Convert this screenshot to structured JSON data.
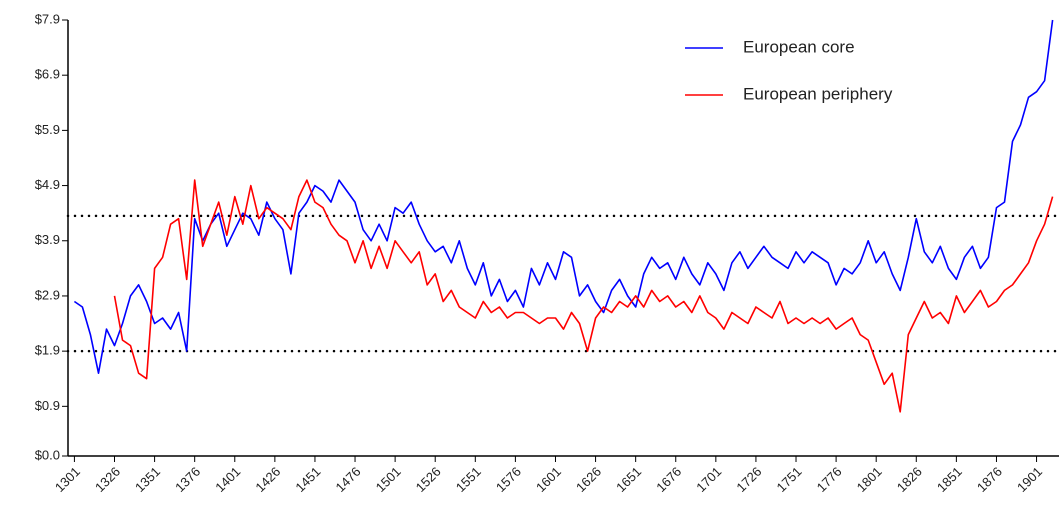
{
  "chart_data": {
    "type": "line",
    "x": [
      1301,
      1306,
      1311,
      1316,
      1321,
      1326,
      1331,
      1336,
      1341,
      1346,
      1351,
      1356,
      1361,
      1366,
      1371,
      1376,
      1381,
      1386,
      1391,
      1396,
      1401,
      1406,
      1411,
      1416,
      1421,
      1426,
      1431,
      1436,
      1441,
      1446,
      1451,
      1456,
      1461,
      1466,
      1471,
      1476,
      1481,
      1486,
      1491,
      1496,
      1501,
      1506,
      1511,
      1516,
      1521,
      1526,
      1531,
      1536,
      1541,
      1546,
      1551,
      1556,
      1561,
      1566,
      1571,
      1576,
      1581,
      1586,
      1591,
      1596,
      1601,
      1606,
      1611,
      1616,
      1621,
      1626,
      1631,
      1636,
      1641,
      1646,
      1651,
      1656,
      1661,
      1666,
      1671,
      1676,
      1681,
      1686,
      1691,
      1696,
      1701,
      1706,
      1711,
      1716,
      1721,
      1726,
      1731,
      1736,
      1741,
      1746,
      1751,
      1756,
      1761,
      1766,
      1771,
      1776,
      1781,
      1786,
      1791,
      1796,
      1801,
      1806,
      1811,
      1816,
      1821,
      1826,
      1831,
      1836,
      1841,
      1846,
      1851,
      1856,
      1861,
      1866,
      1871,
      1876,
      1881,
      1886,
      1891,
      1896,
      1901,
      1906,
      1911
    ],
    "series": [
      {
        "name": "European core",
        "color": "#0000ff",
        "values": [
          2.8,
          2.7,
          2.2,
          1.5,
          2.3,
          2.0,
          2.4,
          2.9,
          3.1,
          2.8,
          2.4,
          2.5,
          2.3,
          2.6,
          1.9,
          4.3,
          3.9,
          4.2,
          4.4,
          3.8,
          4.1,
          4.4,
          4.3,
          4.0,
          4.6,
          4.3,
          4.1,
          3.3,
          4.4,
          4.6,
          4.9,
          4.8,
          4.6,
          5.0,
          4.8,
          4.6,
          4.1,
          3.9,
          4.2,
          3.9,
          4.5,
          4.4,
          4.6,
          4.2,
          3.9,
          3.7,
          3.8,
          3.5,
          3.9,
          3.4,
          3.1,
          3.5,
          2.9,
          3.2,
          2.8,
          3.0,
          2.7,
          3.4,
          3.1,
          3.5,
          3.2,
          3.7,
          3.6,
          2.9,
          3.1,
          2.8,
          2.6,
          3.0,
          3.2,
          2.9,
          2.7,
          3.3,
          3.6,
          3.4,
          3.5,
          3.2,
          3.6,
          3.3,
          3.1,
          3.5,
          3.3,
          3.0,
          3.5,
          3.7,
          3.4,
          3.6,
          3.8,
          3.6,
          3.5,
          3.4,
          3.7,
          3.5,
          3.7,
          3.6,
          3.5,
          3.1,
          3.4,
          3.3,
          3.5,
          3.9,
          3.5,
          3.7,
          3.3,
          3.0,
          3.6,
          4.3,
          3.7,
          3.5,
          3.8,
          3.4,
          3.2,
          3.6,
          3.8,
          3.4,
          3.6,
          4.5,
          4.6,
          5.7,
          6.0,
          6.5,
          6.6,
          6.8,
          7.9
        ]
      },
      {
        "name": "European periphery",
        "color": "#ff0000",
        "values": [
          null,
          null,
          null,
          null,
          null,
          2.9,
          2.1,
          2.0,
          1.5,
          1.4,
          3.4,
          3.6,
          4.2,
          4.3,
          3.2,
          5.0,
          3.8,
          4.2,
          4.6,
          4.0,
          4.7,
          4.2,
          4.9,
          4.3,
          4.5,
          4.4,
          4.3,
          4.1,
          4.7,
          5.0,
          4.6,
          4.5,
          4.2,
          4.0,
          3.9,
          3.5,
          3.9,
          3.4,
          3.8,
          3.4,
          3.9,
          3.7,
          3.5,
          3.7,
          3.1,
          3.3,
          2.8,
          3.0,
          2.7,
          2.6,
          2.5,
          2.8,
          2.6,
          2.7,
          2.5,
          2.6,
          2.6,
          2.5,
          2.4,
          2.5,
          2.5,
          2.3,
          2.6,
          2.4,
          1.9,
          2.5,
          2.7,
          2.6,
          2.8,
          2.7,
          2.9,
          2.7,
          3.0,
          2.8,
          2.9,
          2.7,
          2.8,
          2.6,
          2.9,
          2.6,
          2.5,
          2.3,
          2.6,
          2.5,
          2.4,
          2.7,
          2.6,
          2.5,
          2.8,
          2.4,
          2.5,
          2.4,
          2.5,
          2.4,
          2.5,
          2.3,
          2.4,
          2.5,
          2.2,
          2.1,
          1.7,
          1.3,
          1.5,
          0.8,
          2.2,
          2.5,
          2.8,
          2.5,
          2.6,
          2.4,
          2.9,
          2.6,
          2.8,
          3.0,
          2.7,
          2.8,
          3.0,
          3.1,
          3.3,
          3.5,
          3.9,
          4.2,
          4.7
        ]
      }
    ],
    "xlim": [
      1297,
      1915
    ],
    "xticks": [
      1301,
      1326,
      1351,
      1376,
      1401,
      1426,
      1451,
      1476,
      1501,
      1526,
      1551,
      1576,
      1601,
      1626,
      1651,
      1676,
      1701,
      1726,
      1751,
      1776,
      1801,
      1826,
      1851,
      1876,
      1901
    ],
    "ylim": [
      0,
      7.9
    ],
    "yticks": [
      {
        "value": 0,
        "label": "$0.0"
      },
      {
        "value": 0.9,
        "label": "$0.9"
      },
      {
        "value": 1.9,
        "label": "$1.9"
      },
      {
        "value": 2.9,
        "label": "$2.9"
      },
      {
        "value": 3.9,
        "label": "$3.9"
      },
      {
        "value": 4.9,
        "label": "$4.9"
      },
      {
        "value": 5.9,
        "label": "$5.9"
      },
      {
        "value": 6.9,
        "label": "$6.9"
      },
      {
        "value": 7.9,
        "label": "$7.9"
      }
    ],
    "reference_lines": [
      4.35,
      1.9
    ],
    "legend": "top-right"
  }
}
